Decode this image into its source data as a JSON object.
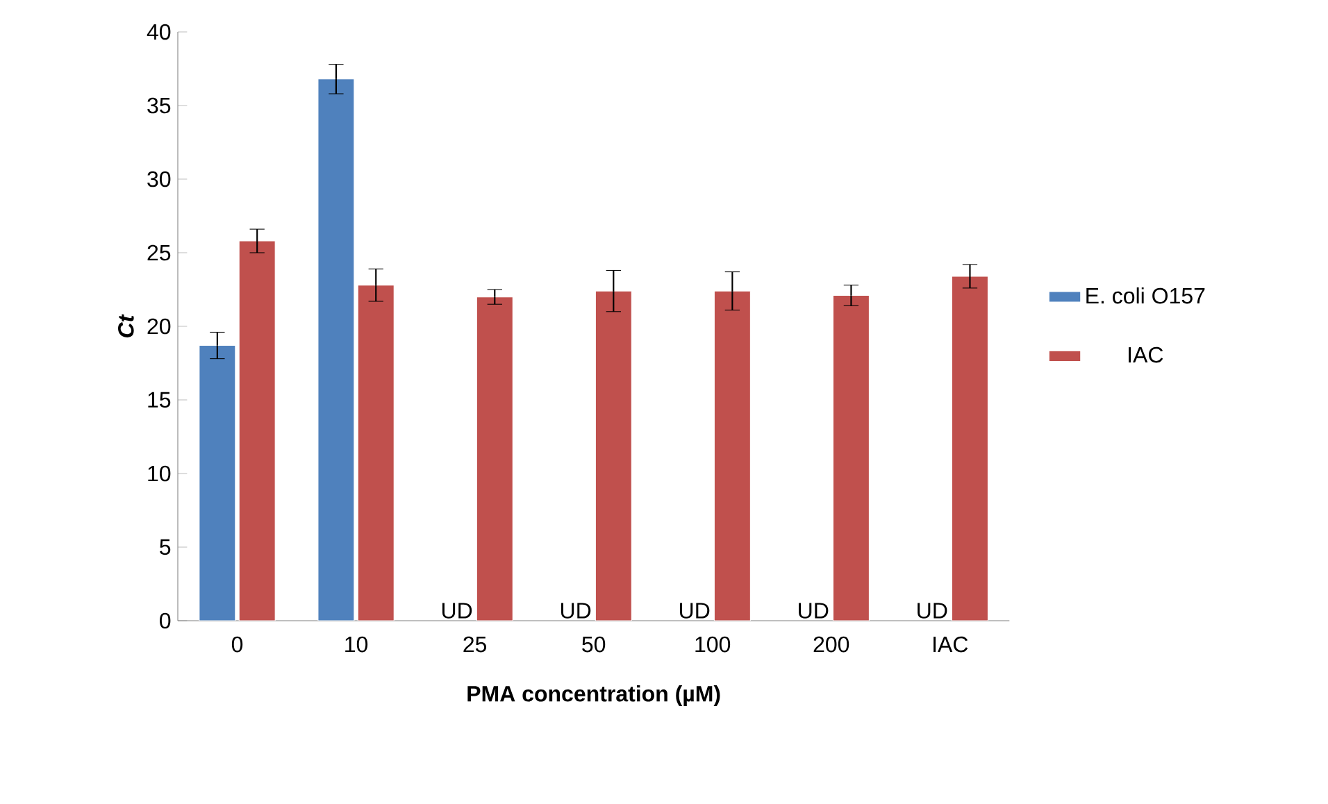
{
  "chart_data": {
    "type": "bar",
    "xlabel": "PMA concentration (µM)",
    "ylabel": "*Ct*",
    "categories": [
      "0",
      "10",
      "25",
      "50",
      "100",
      "200",
      "IAC"
    ],
    "series": [
      {
        "name": "E. coli O157",
        "color": "#4f81bd",
        "values": [
          18.7,
          36.8,
          null,
          null,
          null,
          null,
          null
        ],
        "errors": [
          0.9,
          1.0,
          null,
          null,
          null,
          null,
          null
        ]
      },
      {
        "name": "IAC",
        "color": "#c0504d",
        "values": [
          25.8,
          22.8,
          22.0,
          22.4,
          22.4,
          22.1,
          23.4
        ],
        "errors": [
          0.8,
          1.1,
          0.5,
          1.4,
          1.3,
          0.7,
          0.8
        ]
      }
    ],
    "ylim": [
      0,
      40
    ],
    "yticks": [
      0,
      5,
      10,
      15,
      20,
      25,
      30,
      35,
      40
    ],
    "annotations": [
      {
        "text": "UD",
        "x": "25",
        "y": 0
      },
      {
        "text": "UD",
        "x": "50",
        "y": 0
      },
      {
        "text": "UD",
        "x": "100",
        "y": 0
      },
      {
        "text": "UD",
        "x": "200",
        "y": 0
      },
      {
        "text": "UD",
        "x": "IAC",
        "y": 0
      }
    ],
    "grid": false,
    "legend": "right"
  }
}
